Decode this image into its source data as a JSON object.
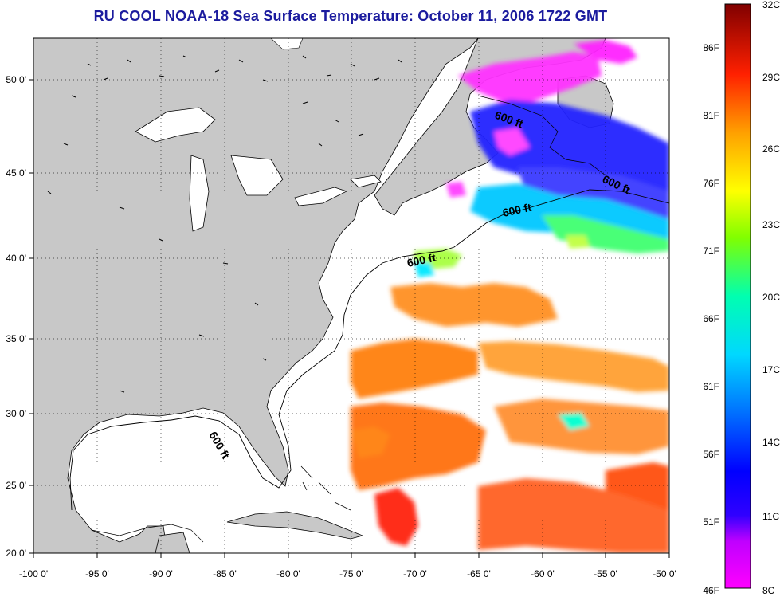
{
  "header": {
    "title": "RU COOL  NOAA-18  Sea Surface Temperature:  October 11, 2006 1722 GMT"
  },
  "axes": {
    "x_ticks": [
      "-100 0'",
      "-95 0'",
      "-90 0'",
      "-85 0'",
      "-80 0'",
      "-75 0'",
      "-70 0'",
      "-65 0'",
      "-60 0'",
      "-55 0'",
      "-50 0'"
    ],
    "y_ticks": [
      "20 0'",
      "25 0'",
      "30 0'",
      "35 0'",
      "40 0'",
      "45 0'",
      "50 0'"
    ],
    "lon_range": [
      -100,
      -50
    ],
    "lat_range": [
      20,
      52.5
    ],
    "grid": "dotted"
  },
  "contours": {
    "label": "600 ft",
    "label_count": 5
  },
  "colorbar": {
    "celsius_labels": [
      "32C",
      "29C",
      "26C",
      "23C",
      "20C",
      "17C",
      "14C",
      "11C",
      "8C"
    ],
    "fahrenheit_labels": [
      "86F",
      "81F",
      "76F",
      "71F",
      "66F",
      "61F",
      "56F",
      "51F",
      "46F"
    ],
    "colors": [
      "#ff00ff",
      "#7f00ff",
      "#0000ff",
      "#0080ff",
      "#00ffff",
      "#00ff80",
      "#80ff00",
      "#ffff00",
      "#ff8000",
      "#ff0000",
      "#800000"
    ]
  },
  "legend_colors": {
    "land": "#c8c8c8",
    "no_data": "#ffffff",
    "title_color": "#1b1b9e"
  }
}
